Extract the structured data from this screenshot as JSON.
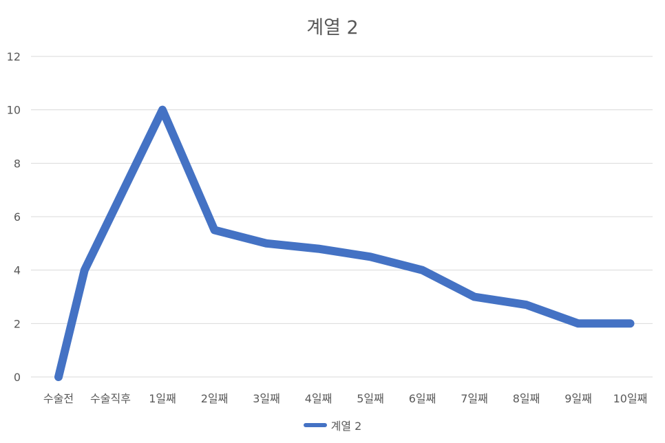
{
  "chart_data": {
    "type": "line",
    "title": "계열 2",
    "xlabel": "",
    "ylabel": "",
    "categories": [
      "수술전",
      "수술직후",
      "1일째",
      "2일째",
      "3일째",
      "4일째",
      "5일째",
      "6일째",
      "7일째",
      "8일째",
      "9일째",
      "10일째"
    ],
    "x_point_positions": [
      0,
      0.5,
      2,
      3,
      4,
      5,
      6,
      7,
      8,
      9,
      10,
      11
    ],
    "series": [
      {
        "name": "계열 2",
        "color": "#4472C4",
        "values": [
          0,
          4,
          10,
          5.5,
          5,
          4.8,
          4.5,
          4,
          3,
          2.7,
          2,
          2
        ]
      }
    ],
    "ylim": [
      0,
      12
    ],
    "yticks": [
      0,
      2,
      4,
      6,
      8,
      10,
      12
    ],
    "grid": true,
    "legend_position": "bottom",
    "gridline_color": "#D9D9D9",
    "text_color": "#595959"
  }
}
